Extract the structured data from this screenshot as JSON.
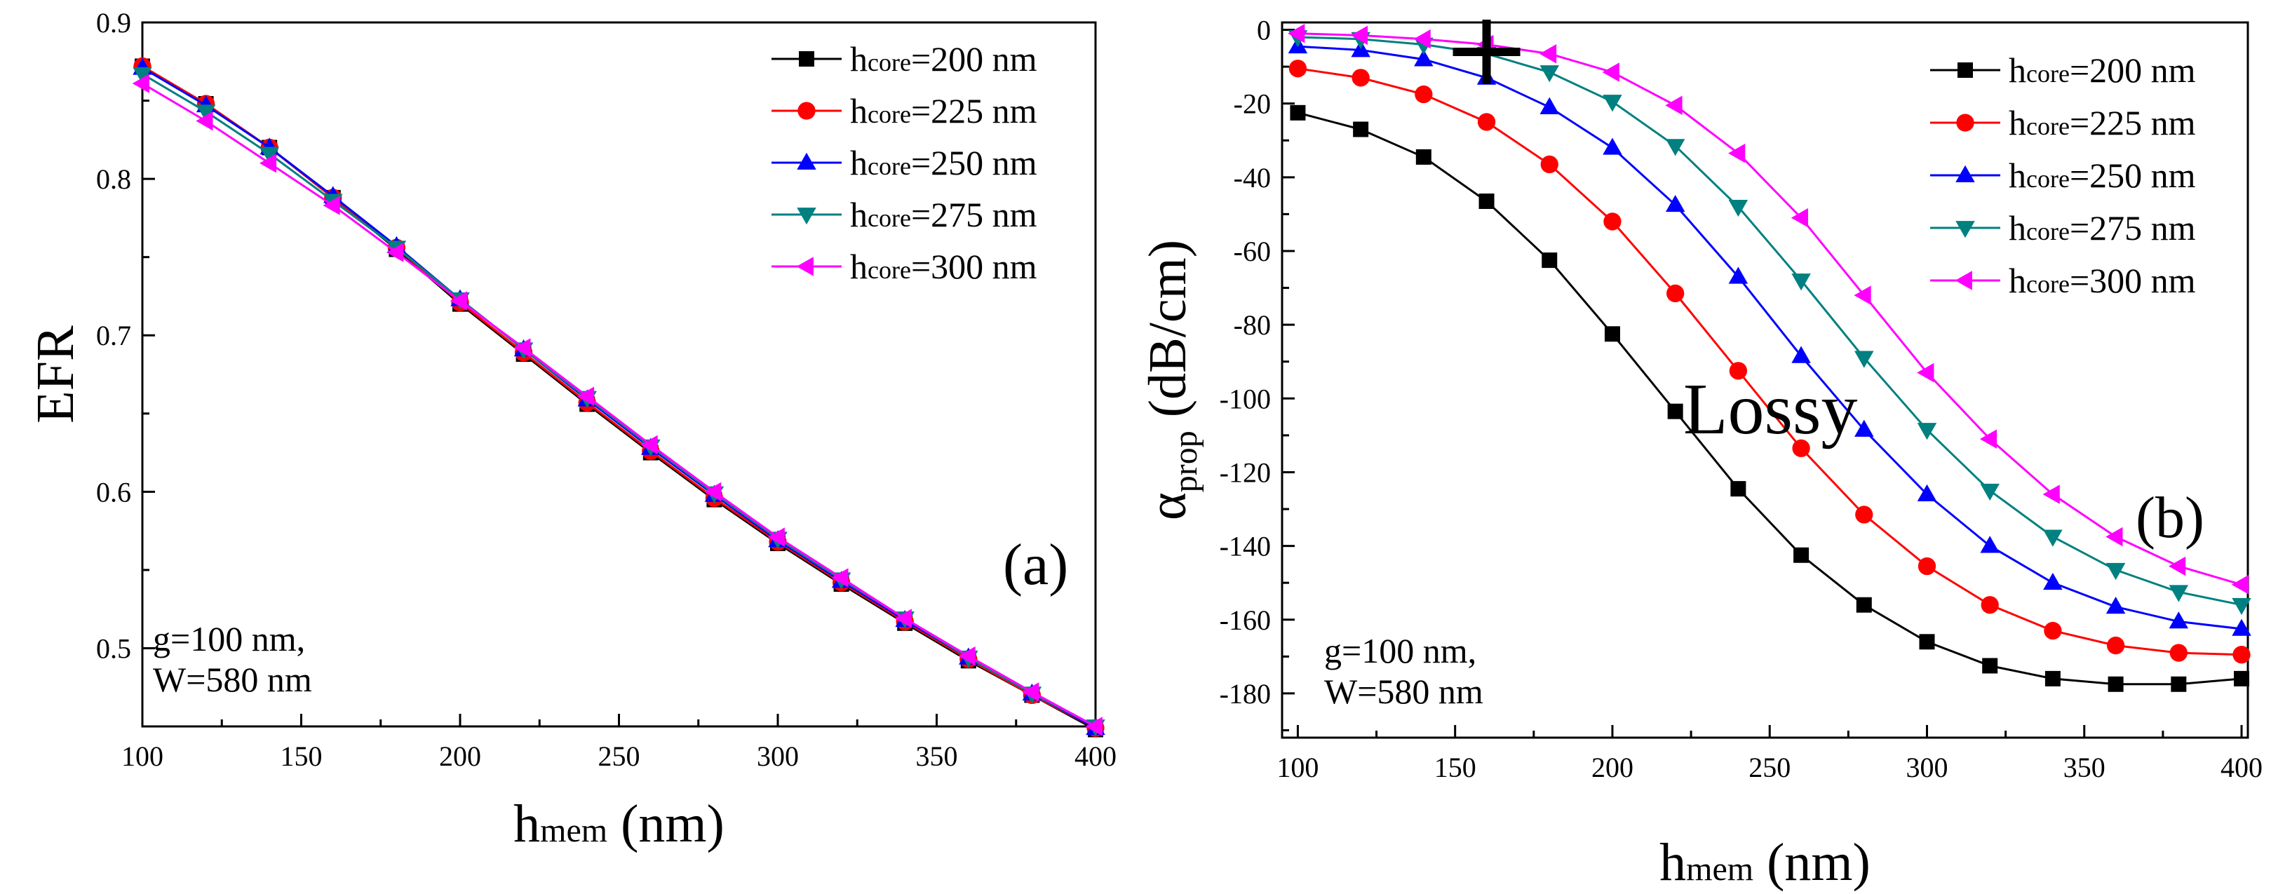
{
  "chart_data": [
    {
      "type": "line",
      "panel_label": "(a)",
      "ylabel": "EFR",
      "xlabel": {
        "main": "h",
        "sub": "mem",
        "unit": " (nm)"
      },
      "xlim": [
        100,
        400
      ],
      "ylim": [
        0.45,
        0.9
      ],
      "x_ticks": [
        "100",
        "150",
        "200",
        "250",
        "300",
        "350",
        "400"
      ],
      "y_ticks": [
        "0.5",
        "0.6",
        "0.7",
        "0.8",
        "0.9"
      ],
      "legend_position": "top-right",
      "grid": false,
      "annotation": [
        "g=100 nm,",
        "W=580 nm"
      ],
      "x": [
        100,
        120,
        140,
        160,
        180,
        200,
        220,
        240,
        260,
        280,
        300,
        320,
        340,
        360,
        380,
        400
      ],
      "series": [
        {
          "name": "h",
          "sub": "core",
          "val": "=200 nm",
          "color": "#000000",
          "marker": "square",
          "values": [
            0.872,
            0.848,
            0.82,
            0.788,
            0.755,
            0.72,
            0.688,
            0.656,
            0.625,
            0.595,
            0.567,
            0.541,
            0.516,
            0.492,
            0.47,
            0.448
          ]
        },
        {
          "name": "h",
          "sub": "core",
          "val": "=225 nm",
          "color": "#ff0000",
          "marker": "circle",
          "values": [
            0.872,
            0.848,
            0.82,
            0.788,
            0.756,
            0.721,
            0.689,
            0.657,
            0.626,
            0.596,
            0.568,
            0.542,
            0.517,
            0.493,
            0.47,
            0.449
          ]
        },
        {
          "name": "h",
          "sub": "core",
          "val": "=250 nm",
          "color": "#0000ff",
          "marker": "triangle-up",
          "values": [
            0.871,
            0.847,
            0.82,
            0.789,
            0.757,
            0.723,
            0.691,
            0.659,
            0.628,
            0.598,
            0.569,
            0.543,
            0.518,
            0.494,
            0.471,
            0.449
          ]
        },
        {
          "name": "h",
          "sub": "core",
          "val": "=275 nm",
          "color": "#008080",
          "marker": "triangle-down",
          "values": [
            0.867,
            0.843,
            0.816,
            0.786,
            0.756,
            0.723,
            0.691,
            0.66,
            0.629,
            0.599,
            0.57,
            0.544,
            0.519,
            0.494,
            0.471,
            0.45
          ]
        },
        {
          "name": "h",
          "sub": "core",
          "val": "=300 nm",
          "color": "#ff00ff",
          "marker": "triangle-left",
          "values": [
            0.861,
            0.837,
            0.81,
            0.783,
            0.753,
            0.722,
            0.692,
            0.661,
            0.63,
            0.6,
            0.571,
            0.545,
            0.519,
            0.495,
            0.472,
            0.45
          ]
        }
      ]
    },
    {
      "type": "line",
      "panel_label": "(b)",
      "ylabel": {
        "main": "α",
        "sub": "prop",
        "unit": " (dB/cm)"
      },
      "xlabel": {
        "main": "h",
        "sub": "mem",
        "unit": " (nm)"
      },
      "xlim": [
        95,
        402
      ],
      "ylim": [
        -192,
        2
      ],
      "x_ticks": [
        "100",
        "150",
        "200",
        "250",
        "300",
        "350",
        "400"
      ],
      "y_ticks": [
        "0",
        "-20",
        "-40",
        "-60",
        "-80",
        "-100",
        "-120",
        "-140",
        "-160",
        "-180"
      ],
      "legend_position": "top-right",
      "grid": false,
      "annotation": [
        "g=100 nm,",
        "W=580 nm"
      ],
      "lossy_label": "Lossy",
      "plus_marker_at": [
        160,
        -6
      ],
      "x": [
        100,
        120,
        140,
        160,
        180,
        200,
        220,
        240,
        260,
        280,
        300,
        320,
        340,
        360,
        380,
        400
      ],
      "series": [
        {
          "name": "h",
          "sub": "core",
          "val": "=200 nm",
          "color": "#000000",
          "marker": "square",
          "values": [
            -22.5,
            -27,
            -34.5,
            -46.5,
            -62.5,
            -82.5,
            -103.5,
            -124.5,
            -142.5,
            -156,
            -166,
            -172.5,
            -176,
            -177.5,
            -177.5,
            -176
          ]
        },
        {
          "name": "h",
          "sub": "core",
          "val": "=225 nm",
          "color": "#ff0000",
          "marker": "circle",
          "values": [
            -10.5,
            -13,
            -17.5,
            -25,
            -36.5,
            -52,
            -71.5,
            -92.5,
            -113.5,
            -131.5,
            -145.5,
            -156,
            -163,
            -167,
            -169,
            -169.5
          ]
        },
        {
          "name": "h",
          "sub": "core",
          "val": "=250 nm",
          "color": "#0000ff",
          "marker": "triangle-up",
          "values": [
            -4.5,
            -5.5,
            -8,
            -13,
            -21,
            -32,
            -47.5,
            -67,
            -88.5,
            -108.5,
            -126,
            -140,
            -150,
            -156.5,
            -160.5,
            -162.5
          ]
        },
        {
          "name": "h",
          "sub": "core",
          "val": "=275 nm",
          "color": "#008080",
          "marker": "triangle-down",
          "values": [
            -2,
            -2.5,
            -4,
            -6.5,
            -11.5,
            -19.5,
            -31.5,
            -48,
            -68,
            -89,
            -108.5,
            -125,
            -137.5,
            -146.5,
            -152.5,
            -156
          ]
        },
        {
          "name": "h",
          "sub": "core",
          "val": "=300 nm",
          "color": "#ff00ff",
          "marker": "triangle-left",
          "values": [
            -1,
            -1.5,
            -2.5,
            -4,
            -6.5,
            -11.5,
            -20.5,
            -33.5,
            -51,
            -72,
            -93,
            -111,
            -126,
            -137.5,
            -145.5,
            -150.5
          ]
        }
      ]
    }
  ]
}
